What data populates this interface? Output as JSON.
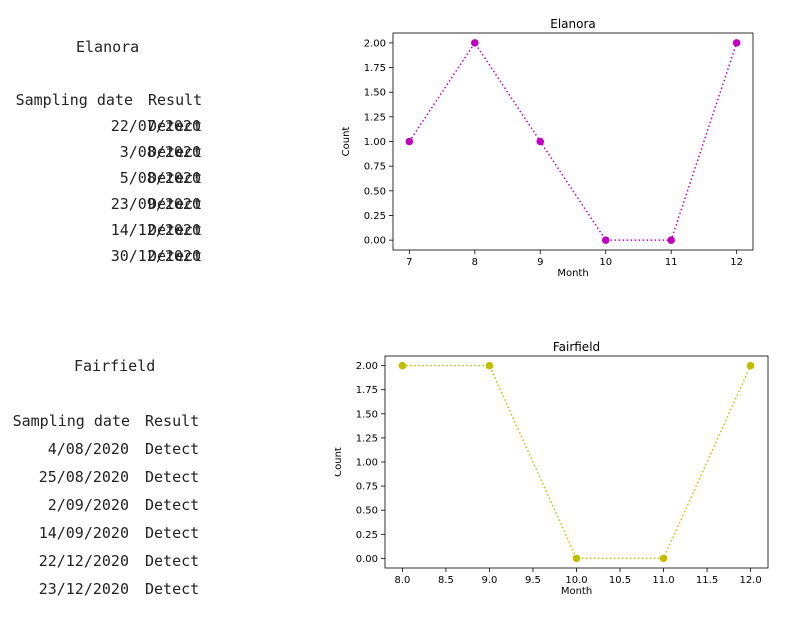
{
  "tables": [
    {
      "title": "Elanora",
      "header": {
        "date": "Sampling date",
        "result": "Result"
      },
      "rows": [
        {
          "date": "22/07/2020",
          "result": "Detect"
        },
        {
          "date": "3/08/2020",
          "result": "Detect"
        },
        {
          "date": "5/08/2020",
          "result": "Detect"
        },
        {
          "date": "23/09/2020",
          "result": "Detect"
        },
        {
          "date": "14/12/2020",
          "result": "Detect"
        },
        {
          "date": "30/12/2020",
          "result": "Detect"
        }
      ]
    },
    {
      "title": "Fairfield",
      "header": {
        "date": "Sampling date",
        "result": "Result"
      },
      "rows": [
        {
          "date": "4/08/2020",
          "result": "Detect"
        },
        {
          "date": "25/08/2020",
          "result": "Detect"
        },
        {
          "date": "2/09/2020",
          "result": "Detect"
        },
        {
          "date": "14/09/2020",
          "result": "Detect"
        },
        {
          "date": "22/12/2020",
          "result": "Detect"
        },
        {
          "date": "23/12/2020",
          "result": "Detect"
        }
      ]
    }
  ],
  "chart_data": [
    {
      "type": "line",
      "title": "Elanora",
      "xlabel": "Month",
      "ylabel": "Count",
      "x": [
        7,
        8,
        9,
        10,
        11,
        12
      ],
      "y": [
        1,
        2,
        1,
        0,
        0,
        2
      ],
      "xticks": [
        "7",
        "8",
        "9",
        "10",
        "11",
        "12"
      ],
      "yticks": [
        "0.00",
        "0.25",
        "0.50",
        "0.75",
        "1.00",
        "1.25",
        "1.50",
        "1.75",
        "2.00"
      ],
      "xlim": [
        6.75,
        12.25
      ],
      "ylim": [
        -0.1,
        2.1
      ],
      "color": "#bf00bf",
      "line_style": "dotted",
      "marker": "circle",
      "grid": false
    },
    {
      "type": "line",
      "title": "Fairfield",
      "xlabel": "Month",
      "ylabel": "Count",
      "x": [
        8,
        9,
        10,
        11,
        12
      ],
      "y": [
        2,
        2,
        0,
        0,
        2
      ],
      "xticks": [
        "8.0",
        "8.5",
        "9.0",
        "9.5",
        "10.0",
        "10.5",
        "11.0",
        "11.5",
        "12.0"
      ],
      "yticks": [
        "0.00",
        "0.25",
        "0.50",
        "0.75",
        "1.00",
        "1.25",
        "1.50",
        "1.75",
        "2.00"
      ],
      "xlim": [
        7.8,
        12.2
      ],
      "ylim": [
        -0.1,
        2.1
      ],
      "color": "#bfbf00",
      "line_style": "dotted",
      "marker": "circle",
      "grid": false
    }
  ]
}
